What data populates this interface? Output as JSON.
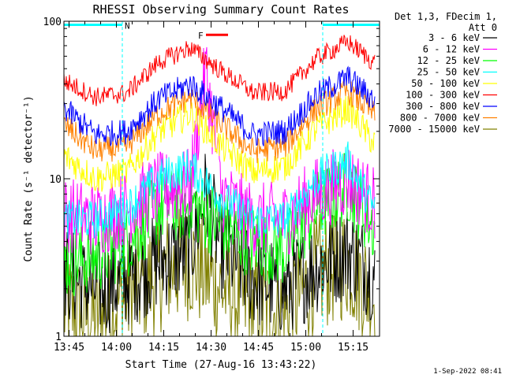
{
  "chart_data": {
    "type": "line",
    "title": "RHESSI Observing Summary Count Rates",
    "xlabel": "Start Time (27-Aug-16 13:43:22)",
    "ylabel": "Count Rate (s⁻¹ detector⁻¹)",
    "yscale": "log",
    "ylim": [
      1,
      100
    ],
    "xlim_minutes": [
      0,
      100
    ],
    "x_ticks": [
      "13:45",
      "14:00",
      "14:15",
      "14:30",
      "14:45",
      "15:00",
      "15:15"
    ],
    "y_ticks": [
      "1",
      "10",
      "100"
    ],
    "legend_header": [
      "Det 1,3, FDecim 1,",
      "Att 0"
    ],
    "legend_position": "top-right",
    "series": [
      {
        "name": "3 - 6 keV",
        "color": "#000000",
        "x_min": [
          0,
          10,
          20,
          30,
          40,
          45,
          50,
          55,
          60,
          70,
          80,
          90,
          98
        ],
        "y": [
          2.5,
          2.0,
          2.3,
          3.0,
          3.5,
          8.0,
          3.5,
          3.0,
          2.3,
          2.0,
          2.8,
          3.5,
          2.5
        ]
      },
      {
        "name": "6 - 12 keV",
        "color": "#ff00ff",
        "x_min": [
          0,
          10,
          20,
          30,
          40,
          45,
          50,
          55,
          60,
          70,
          80,
          90,
          98
        ],
        "y": [
          6.0,
          5.5,
          6.5,
          8.5,
          9.0,
          50.0,
          8.0,
          6.5,
          5.5,
          5.5,
          8.0,
          10.0,
          7.0
        ]
      },
      {
        "name": "12 - 25 keV",
        "color": "#00ff00",
        "x_min": [
          0,
          10,
          20,
          30,
          40,
          50,
          60,
          70,
          80,
          90,
          98
        ],
        "y": [
          3.0,
          3.2,
          4.0,
          6.5,
          7.0,
          5.0,
          4.0,
          3.5,
          6.5,
          9.0,
          5.0
        ]
      },
      {
        "name": "25 - 50 keV",
        "color": "#00ffff",
        "x_min": [
          0,
          10,
          20,
          30,
          40,
          50,
          60,
          70,
          80,
          90,
          98
        ],
        "y": [
          5.5,
          5.5,
          6.5,
          10.0,
          12.0,
          7.5,
          5.5,
          5.5,
          10.0,
          13.0,
          6.5
        ]
      },
      {
        "name": "50 - 100 keV",
        "color": "#ffff00",
        "x_min": [
          0,
          10,
          20,
          30,
          40,
          50,
          60,
          70,
          80,
          90,
          98
        ],
        "y": [
          14.0,
          10.0,
          11.0,
          20.0,
          26.0,
          16.0,
          11.0,
          12.0,
          21.0,
          28.0,
          17.0
        ]
      },
      {
        "name": "100 - 300 keV",
        "color": "#ff0000",
        "x_min": [
          0,
          10,
          20,
          30,
          40,
          50,
          60,
          70,
          80,
          90,
          98
        ],
        "y": [
          42.0,
          33.0,
          35.0,
          55.0,
          68.0,
          48.0,
          35.0,
          36.0,
          58.0,
          74.0,
          55.0
        ]
      },
      {
        "name": "300 - 800 keV",
        "color": "#0000ff",
        "x_min": [
          0,
          10,
          20,
          30,
          40,
          50,
          60,
          70,
          80,
          90,
          98
        ],
        "y": [
          28.0,
          19.0,
          20.0,
          32.0,
          40.0,
          28.0,
          19.0,
          20.0,
          34.0,
          44.0,
          32.0
        ]
      },
      {
        "name": "800 - 7000 keV",
        "color": "#ff8000",
        "x_min": [
          0,
          10,
          20,
          30,
          40,
          50,
          60,
          70,
          80,
          90,
          98
        ],
        "y": [
          22.0,
          15.0,
          16.0,
          26.0,
          33.0,
          22.0,
          15.0,
          16.0,
          28.0,
          36.0,
          26.0
        ]
      },
      {
        "name": "7000 - 15000 keV",
        "color": "#808000",
        "x_min": [
          0,
          10,
          20,
          30,
          40,
          50,
          60,
          70,
          80,
          90,
          98
        ],
        "y": [
          1.5,
          1.3,
          1.8,
          2.5,
          3.0,
          2.0,
          1.5,
          1.4,
          2.5,
          3.0,
          1.8
        ]
      }
    ],
    "annotations": [
      {
        "text": "N",
        "color": "#00ffff",
        "bars": [
          {
            "x_min": [
              0,
              18.5
            ]
          },
          {
            "x_min": [
              82,
              100
            ]
          }
        ],
        "dashed_lines_x_min": [
          18.5,
          82
        ]
      },
      {
        "text": "F",
        "color": "#ff0000",
        "bars": [
          {
            "x_min": [
              45,
              52
            ]
          }
        ],
        "level": 82
      }
    ],
    "footer_timestamp": "1-Sep-2022 08:41"
  }
}
